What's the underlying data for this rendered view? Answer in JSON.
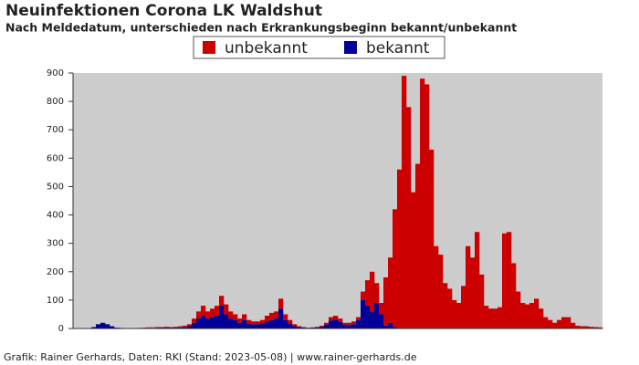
{
  "chart_data": {
    "type": "stacked_bar",
    "title": "Neuinfektionen Corona LK Waldshut",
    "subtitle": "Nach Meldedatum, unterschieden nach Erkrankungsbeginn bekannt/unbekannt",
    "footer": "Grafik: Rainer Gerhards, Daten: RKI (Stand: 2023-05-08) | www.rainer-gerhards.de",
    "ylim": [
      0,
      900
    ],
    "yticks": [
      0,
      100,
      200,
      300,
      400,
      500,
      600,
      700,
      800,
      900
    ],
    "background": "#cccccc",
    "series": [
      {
        "name": "unbekannt",
        "color": "#cc0000",
        "values": [
          0,
          0,
          0,
          0,
          0,
          0,
          0,
          0,
          0,
          0,
          0,
          0,
          0,
          0,
          0,
          1,
          2,
          2,
          2,
          2,
          3,
          2,
          3,
          4,
          5,
          7,
          15,
          25,
          35,
          25,
          30,
          35,
          35,
          35,
          25,
          20,
          15,
          20,
          12,
          10,
          10,
          12,
          20,
          25,
          25,
          35,
          20,
          12,
          7,
          3,
          2,
          1,
          1,
          2,
          3,
          6,
          12,
          13,
          10,
          6,
          8,
          10,
          10,
          30,
          90,
          140,
          70,
          40,
          170,
          230,
          415,
          558,
          890,
          780,
          480,
          580,
          880,
          860,
          630,
          290,
          260,
          160,
          140,
          100,
          90,
          150,
          290,
          250,
          340,
          190,
          80,
          70,
          70,
          75,
          335,
          340,
          230,
          130,
          90,
          85,
          90,
          105,
          70,
          40,
          30,
          20,
          30,
          40,
          40,
          20,
          10,
          8,
          8,
          6,
          5,
          4
        ]
      },
      {
        "name": "bekannt",
        "color": "#000099",
        "values": [
          0,
          0,
          0,
          0,
          5,
          15,
          20,
          15,
          8,
          3,
          2,
          0,
          0,
          0,
          2,
          2,
          2,
          2,
          3,
          3,
          3,
          3,
          3,
          4,
          5,
          8,
          20,
          35,
          45,
          35,
          40,
          45,
          80,
          50,
          35,
          30,
          20,
          30,
          18,
          15,
          15,
          18,
          25,
          30,
          35,
          70,
          30,
          18,
          8,
          5,
          3,
          2,
          3,
          4,
          7,
          14,
          28,
          32,
          25,
          14,
          12,
          15,
          30,
          100,
          80,
          60,
          90,
          50,
          10,
          20,
          5,
          2,
          0,
          0,
          0,
          0,
          0,
          0,
          0,
          0,
          0,
          0,
          0,
          0,
          0,
          0,
          0,
          0,
          0,
          0,
          0,
          0,
          0,
          0,
          0,
          0,
          0,
          0,
          0,
          0,
          0,
          0,
          0,
          0,
          0,
          0,
          0,
          0,
          0,
          0,
          0,
          0,
          0,
          0,
          0,
          0
        ]
      }
    ]
  }
}
